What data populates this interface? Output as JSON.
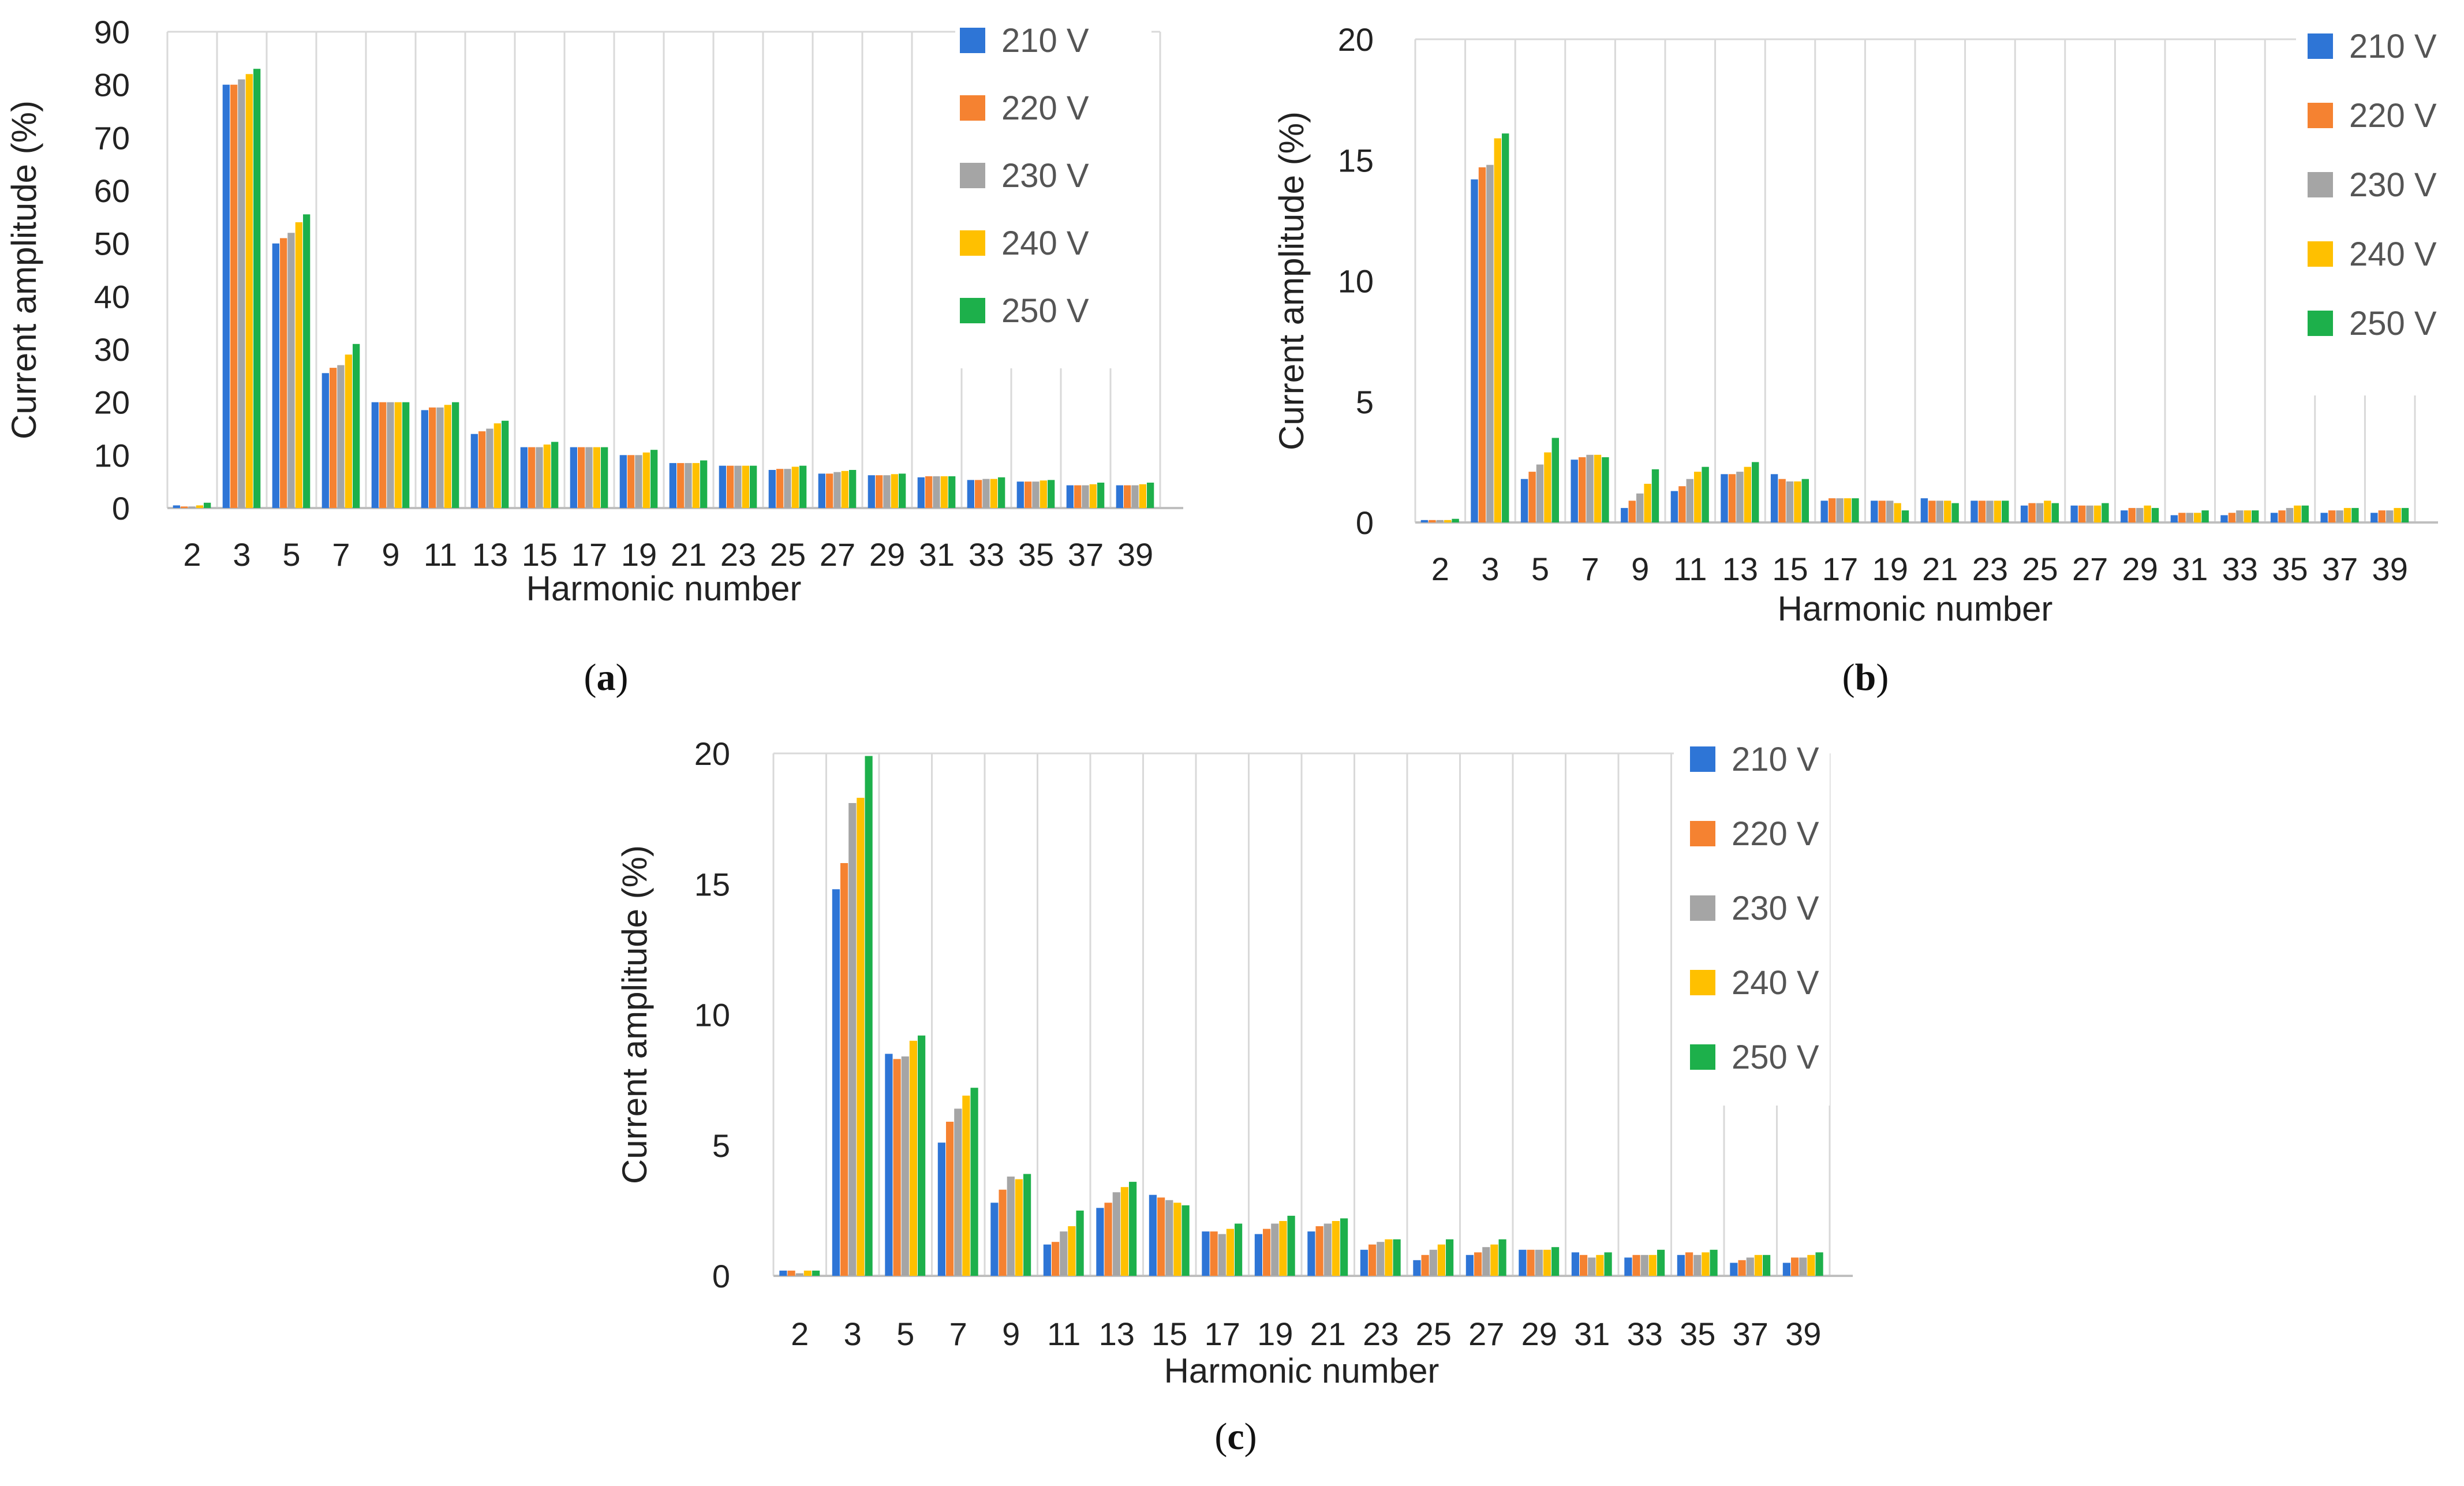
{
  "colors": {
    "210 V": "#2E75D6",
    "220 V": "#F58231",
    "230 V": "#A5A5A5",
    "240 V": "#FFC000",
    "250 V": "#1DB04B"
  },
  "chart_data": [
    {
      "id": "a",
      "type": "bar",
      "panel_prefix": "(",
      "panel_letter": "a",
      "panel_suffix": ")",
      "xlabel": "Harmonic number",
      "ylabel": "Current  amplitude (%)",
      "ylim": [
        0,
        90
      ],
      "yticks": [
        "0",
        "10",
        "20",
        "30",
        "40",
        "50",
        "60",
        "70",
        "80",
        "90"
      ],
      "categories": [
        "2",
        "3",
        "5",
        "7",
        "9",
        "11",
        "13",
        "15",
        "17",
        "19",
        "21",
        "23",
        "25",
        "27",
        "29",
        "31",
        "33",
        "35",
        "37",
        "39"
      ],
      "legend_position": "top-right",
      "series": [
        {
          "name": "210 V",
          "values": [
            0.5,
            80.0,
            50.0,
            25.5,
            20.0,
            18.5,
            14.0,
            11.5,
            11.5,
            10.0,
            8.5,
            8.0,
            7.2,
            6.5,
            6.2,
            5.8,
            5.3,
            5.0,
            4.3,
            4.3
          ]
        },
        {
          "name": "220 V",
          "values": [
            0.3,
            80.0,
            51.0,
            26.5,
            20.0,
            19.0,
            14.5,
            11.5,
            11.5,
            10.0,
            8.5,
            8.0,
            7.4,
            6.5,
            6.2,
            6.0,
            5.3,
            5.0,
            4.3,
            4.3
          ]
        },
        {
          "name": "230 V",
          "values": [
            0.3,
            81.0,
            52.0,
            27.0,
            20.0,
            19.0,
            15.0,
            11.5,
            11.5,
            10.0,
            8.5,
            8.0,
            7.4,
            6.8,
            6.2,
            6.0,
            5.5,
            5.0,
            4.3,
            4.3
          ]
        },
        {
          "name": "240 V",
          "values": [
            0.5,
            82.0,
            54.0,
            29.0,
            20.0,
            19.5,
            16.0,
            12.0,
            11.5,
            10.5,
            8.5,
            8.0,
            7.8,
            7.0,
            6.4,
            6.0,
            5.5,
            5.2,
            4.5,
            4.5
          ]
        },
        {
          "name": "250 V",
          "values": [
            1.0,
            83.0,
            55.5,
            31.0,
            20.0,
            20.0,
            16.5,
            12.5,
            11.5,
            11.0,
            9.0,
            8.0,
            8.0,
            7.2,
            6.5,
            6.0,
            5.8,
            5.3,
            4.8,
            4.8
          ]
        }
      ]
    },
    {
      "id": "b",
      "type": "bar",
      "panel_prefix": "(",
      "panel_letter": "b",
      "panel_suffix": ")",
      "xlabel": "Harmonic number",
      "ylabel": "Current amplitude (%)",
      "ylim": [
        0,
        20
      ],
      "yticks": [
        "0",
        "5",
        "10",
        "15",
        "20"
      ],
      "categories": [
        "2",
        "3",
        "5",
        "7",
        "9",
        "11",
        "13",
        "15",
        "17",
        "19",
        "21",
        "23",
        "25",
        "27",
        "29",
        "31",
        "33",
        "35",
        "37",
        "39"
      ],
      "legend_position": "top-right",
      "series": [
        {
          "name": "210 V",
          "values": [
            0.1,
            14.2,
            1.8,
            2.6,
            0.6,
            1.3,
            2.0,
            2.0,
            0.9,
            0.9,
            1.0,
            0.9,
            0.7,
            0.7,
            0.5,
            0.3,
            0.3,
            0.4,
            0.4,
            0.4
          ]
        },
        {
          "name": "220 V",
          "values": [
            0.1,
            14.7,
            2.1,
            2.7,
            0.9,
            1.5,
            2.0,
            1.8,
            1.0,
            0.9,
            0.9,
            0.9,
            0.8,
            0.7,
            0.6,
            0.4,
            0.4,
            0.5,
            0.5,
            0.5
          ]
        },
        {
          "name": "230 V",
          "values": [
            0.1,
            14.8,
            2.4,
            2.8,
            1.2,
            1.8,
            2.1,
            1.7,
            1.0,
            0.9,
            0.9,
            0.9,
            0.8,
            0.7,
            0.6,
            0.4,
            0.5,
            0.6,
            0.5,
            0.5
          ]
        },
        {
          "name": "240 V",
          "values": [
            0.1,
            15.9,
            2.9,
            2.8,
            1.6,
            2.1,
            2.3,
            1.7,
            1.0,
            0.8,
            0.9,
            0.9,
            0.9,
            0.7,
            0.7,
            0.4,
            0.5,
            0.7,
            0.6,
            0.6
          ]
        },
        {
          "name": "250 V",
          "values": [
            0.15,
            16.1,
            3.5,
            2.7,
            2.2,
            2.3,
            2.5,
            1.8,
            1.0,
            0.5,
            0.8,
            0.9,
            0.8,
            0.8,
            0.6,
            0.5,
            0.5,
            0.7,
            0.6,
            0.6
          ]
        }
      ]
    },
    {
      "id": "c",
      "type": "bar",
      "panel_prefix": "(",
      "panel_letter": "c",
      "panel_suffix": ")",
      "xlabel": "Harmonic number",
      "ylabel": "Current amplitude (%)",
      "ylim": [
        0,
        20
      ],
      "yticks": [
        "0",
        "5",
        "10",
        "15",
        "20"
      ],
      "categories": [
        "2",
        "3",
        "5",
        "7",
        "9",
        "11",
        "13",
        "15",
        "17",
        "19",
        "21",
        "23",
        "25",
        "27",
        "29",
        "31",
        "33",
        "35",
        "37",
        "39"
      ],
      "legend_position": "top-right",
      "series": [
        {
          "name": "210 V",
          "values": [
            0.2,
            14.8,
            8.5,
            5.1,
            2.8,
            1.2,
            2.6,
            3.1,
            1.7,
            1.6,
            1.7,
            1.0,
            0.6,
            0.8,
            1.0,
            0.9,
            0.7,
            0.8,
            0.5,
            0.5
          ]
        },
        {
          "name": "220 V",
          "values": [
            0.2,
            15.8,
            8.3,
            5.9,
            3.3,
            1.3,
            2.8,
            3.0,
            1.7,
            1.8,
            1.9,
            1.2,
            0.8,
            0.9,
            1.0,
            0.8,
            0.8,
            0.9,
            0.6,
            0.7
          ]
        },
        {
          "name": "230 V",
          "values": [
            0.1,
            18.1,
            8.4,
            6.4,
            3.8,
            1.7,
            3.2,
            2.9,
            1.6,
            2.0,
            2.0,
            1.3,
            1.0,
            1.1,
            1.0,
            0.7,
            0.8,
            0.8,
            0.7,
            0.7
          ]
        },
        {
          "name": "240 V",
          "values": [
            0.2,
            18.3,
            9.0,
            6.9,
            3.7,
            1.9,
            3.4,
            2.8,
            1.8,
            2.1,
            2.1,
            1.4,
            1.2,
            1.2,
            1.0,
            0.8,
            0.8,
            0.9,
            0.8,
            0.8
          ]
        },
        {
          "name": "250 V",
          "values": [
            0.2,
            19.9,
            9.2,
            7.2,
            3.9,
            2.5,
            3.6,
            2.7,
            2.0,
            2.3,
            2.2,
            1.4,
            1.4,
            1.4,
            1.1,
            0.9,
            1.0,
            1.0,
            0.8,
            0.9
          ]
        }
      ]
    }
  ]
}
